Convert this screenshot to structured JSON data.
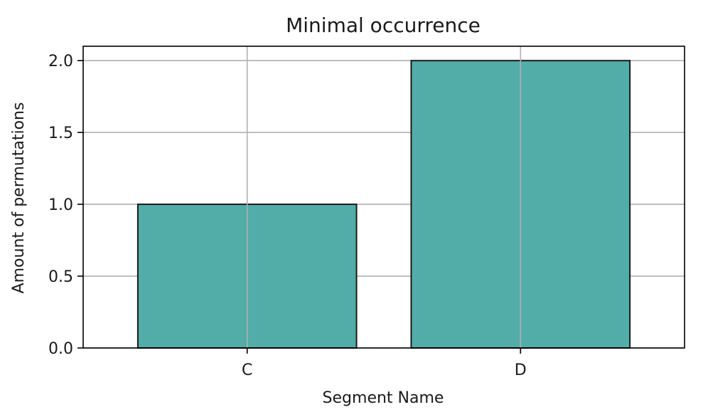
{
  "chart_data": {
    "type": "bar",
    "title": "Minimal occurrence",
    "xlabel": "Segment Name",
    "ylabel": "Amount of permutations",
    "categories": [
      "C",
      "D"
    ],
    "values": [
      1,
      2
    ],
    "ylim": [
      0,
      2.1
    ],
    "yticks": [
      0.0,
      0.5,
      1.0,
      1.5,
      2.0
    ],
    "ytick_labels": [
      "0.0",
      "0.5",
      "1.0",
      "1.5",
      "2.0"
    ],
    "grid": true,
    "colors": {
      "bar_fill": "#52ada9",
      "bar_edge": "#1a1a1a",
      "grid": "#b0b0b0",
      "axes": "#000000"
    }
  }
}
